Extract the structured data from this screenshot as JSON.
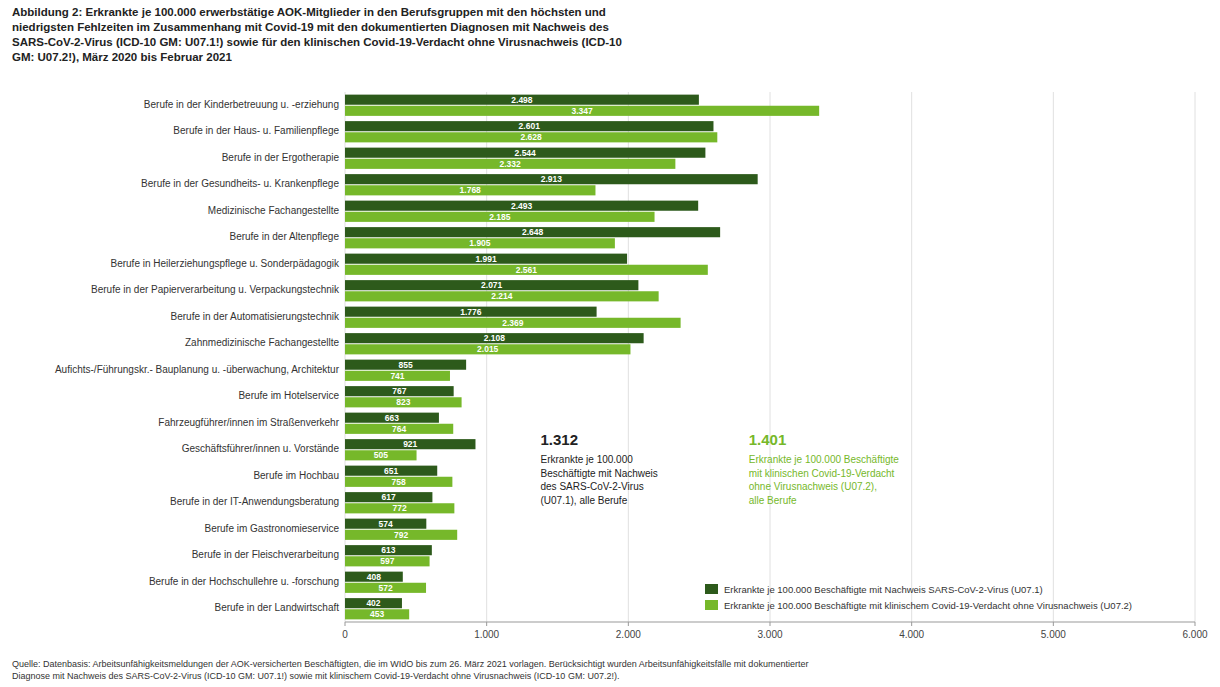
{
  "chart_data": {
    "type": "bar",
    "orientation": "horizontal",
    "title": "Abbildung 2: Erkrankte je 100.000 erwerbstätige AOK-Mitglieder in den Berufsgruppen mit den höchsten und\nniedrigsten Fehlzeiten im Zusammenhang mit Covid-19 mit den dokumentierten Diagnosen mit Nachweis des\nSARS-CoV-2-Virus (ICD-10 GM: U07.1!) sowie für den klinischen Covid-19-Verdacht ohne Virusnachweis (ICD-10\nGM: U07.2!), März 2020 bis Februar 2021",
    "source": "Quelle: Datenbasis: Arbeitsunfähigkeitsmeldungen der AOK-versicherten Beschäftigten, die im WIdO bis zum 26. März 2021 vorlagen. Berücksichtigt wurden Arbeitsunfähigkeitsfälle mit dokumentierter\nDiagnose mit Nachweis des SARS-CoV-2-Virus (ICD-10 GM: U07.1!) sowie mit klinischem Covid-19-Verdacht ohne Virusnachweis (ICD-10 GM: U07.2!).",
    "categories": [
      "Berufe in der Kinderbetreuung u. -erziehung",
      "Berufe in der Haus- u. Familienpflege",
      "Berufe in der Ergotherapie",
      "Berufe in der Gesundheits- u. Krankenpflege",
      "Medizinische Fachangestellte",
      "Berufe in der Altenpflege",
      "Berufe in Heilerziehungspflege u. Sonderpädagogik",
      "Berufe in der Papierverarbeitung u. Verpackungstechnik",
      "Berufe in der Automatisierungstechnik",
      "Zahnmedizinische Fachangestellte",
      "Aufichts-/Führungskr.- Bauplanung u. -überwachung, Architektur",
      "Berufe im Hotelservice",
      "Fahrzeugführer/innen im Straßenverkehr",
      "Geschäftsführer/innen u. Vorstände",
      "Berufe im Hochbau",
      "Berufe in der IT-Anwendungsberatung",
      "Berufe im Gastronomieservice",
      "Berufe in der Fleischverarbeitung",
      "Berufe in der Hochschullehre u. -forschung",
      "Berufe in der Landwirtschaft"
    ],
    "series": [
      {
        "name": "Erkrankte je 100.000 Beschäftigte mit Nachweis SARS-CoV-2-Virus (U07.1)",
        "color": "#2d5a1b",
        "values": [
          2498,
          2601,
          2544,
          2913,
          2493,
          2648,
          1991,
          2071,
          1776,
          2108,
          855,
          767,
          663,
          921,
          651,
          617,
          574,
          613,
          408,
          402
        ],
        "value_labels": [
          "2.498",
          "2.601",
          "2.544",
          "2.913",
          "2.493",
          "2.648",
          "1.991",
          "2.071",
          "1.776",
          "2.108",
          "855",
          "767",
          "663",
          "921",
          "651",
          "617",
          "574",
          "613",
          "408",
          "402"
        ]
      },
      {
        "name": "Erkrankte je 100.000 Beschäftigte mit klinischem Covid-19-Verdacht ohne Virusnachweis (U07.2)",
        "color": "#76b82a",
        "values": [
          3347,
          2628,
          2332,
          1768,
          2185,
          1905,
          2561,
          2214,
          2369,
          2015,
          741,
          823,
          764,
          505,
          758,
          772,
          792,
          597,
          572,
          453
        ],
        "value_labels": [
          "3.347",
          "2.628",
          "2.332",
          "1.768",
          "2.185",
          "1.905",
          "2.561",
          "2.214",
          "2.369",
          "2.015",
          "741",
          "823",
          "764",
          "505",
          "758",
          "772",
          "792",
          "597",
          "572",
          "453"
        ]
      }
    ],
    "annotations": [
      "1.312",
      "Erkrankte je 100.000\nBeschäftigte mit Nachweis\ndes SARS-CoV-2-Virus\n(U07.1), alle Berufe",
      "1.401",
      "Erkrankte je 100.000 Beschäftigte\nmit klinischen Covid-19-Verdacht\nohne Virusnachweis (U07.2),\nalle Berufe"
    ],
    "xlim": [
      0,
      6000
    ],
    "xticks": [
      0,
      {
        "value": 1000,
        "label": "1.000"
      },
      {
        "value": 2000,
        "label": "2.000"
      },
      {
        "value": 3000,
        "label": "3.000"
      },
      {
        "value": 4000,
        "label": "4.000"
      },
      {
        "value": 5000,
        "label": "5.000"
      },
      {
        "value": 6000,
        "label": "6.000"
      }
    ],
    "grid": true,
    "legend": "lower right",
    "data_labels": true
  }
}
